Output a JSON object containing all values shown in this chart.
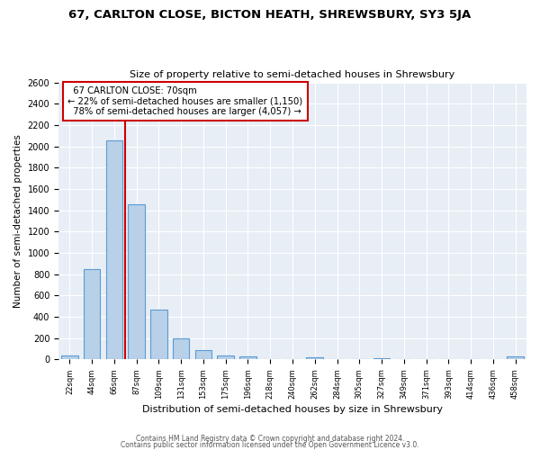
{
  "title": "67, CARLTON CLOSE, BICTON HEATH, SHREWSBURY, SY3 5JA",
  "subtitle": "Size of property relative to semi-detached houses in Shrewsbury",
  "xlabel": "Distribution of semi-detached houses by size in Shrewsbury",
  "ylabel": "Number of semi-detached properties",
  "bins": [
    "22sqm",
    "44sqm",
    "66sqm",
    "87sqm",
    "109sqm",
    "131sqm",
    "153sqm",
    "175sqm",
    "196sqm",
    "218sqm",
    "240sqm",
    "262sqm",
    "284sqm",
    "305sqm",
    "327sqm",
    "349sqm",
    "371sqm",
    "393sqm",
    "414sqm",
    "436sqm",
    "458sqm"
  ],
  "values": [
    40,
    850,
    2060,
    1460,
    470,
    200,
    90,
    40,
    25,
    0,
    0,
    20,
    0,
    0,
    15,
    0,
    0,
    0,
    0,
    0,
    30
  ],
  "bar_color": "#b8d0e8",
  "bar_edge_color": "#5b9bd5",
  "vline_color": "#cc0000",
  "annotation_box_color": "#cc0000",
  "property_label": "67 CARLTON CLOSE: 70sqm",
  "pct_smaller": 22,
  "pct_larger": 78,
  "n_smaller": "1,150",
  "n_larger": "4,057",
  "ylim": [
    0,
    2600
  ],
  "yticks": [
    0,
    200,
    400,
    600,
    800,
    1000,
    1200,
    1400,
    1600,
    1800,
    2000,
    2200,
    2400,
    2600
  ],
  "plot_bg_color": "#e8eef5",
  "fig_bg_color": "#ffffff",
  "grid_color": "#ffffff",
  "footer1": "Contains HM Land Registry data © Crown copyright and database right 2024.",
  "footer2": "Contains public sector information licensed under the Open Government Licence v3.0."
}
